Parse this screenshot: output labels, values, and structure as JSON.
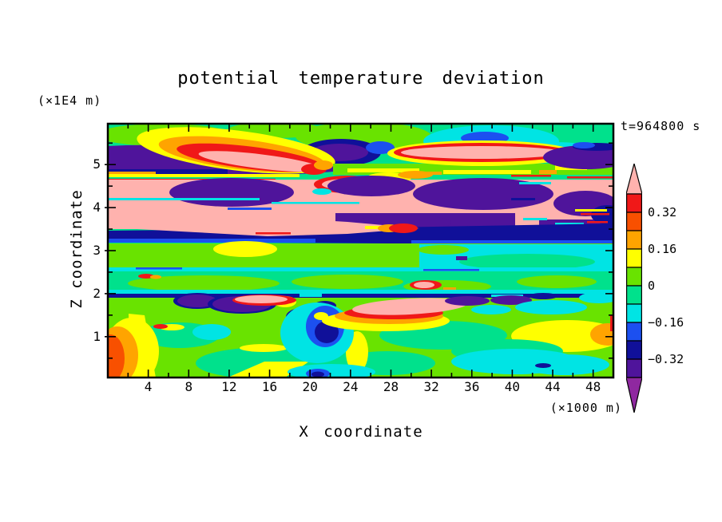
{
  "chart_data": {
    "type": "filled_contour",
    "title": "potential temperature deviation",
    "time_label": "t=964800 s",
    "x_axis": {
      "label": "X coordinate",
      "units": "(×1000 m)",
      "range": [
        0,
        50
      ],
      "minor_tick_step": 2,
      "major_tick_step": 4,
      "tick_labels": [
        4,
        8,
        12,
        16,
        20,
        24,
        28,
        32,
        36,
        40,
        44,
        48
      ]
    },
    "z_axis": {
      "label": "Z coordinate",
      "units": "(×1E4 m)",
      "range": [
        0.05,
        5.95
      ],
      "minor_tick_step": 0.5,
      "major_tick_step": 1,
      "tick_labels": [
        1,
        2,
        3,
        4,
        5
      ]
    },
    "contour_interval": 0.08,
    "contour_levels": [
      -0.4,
      -0.32,
      -0.24,
      -0.16,
      -0.08,
      0,
      0.08,
      0.16,
      0.24,
      0.32,
      0.4
    ],
    "palette": {
      "pink": "#FFB2AE",
      "red": "#F01818",
      "vermillion": "#F85000",
      "orange": "#FFA400",
      "yellow": "#FFFF00",
      "chartreuse": "#69E300",
      "spring_green": "#00E18C",
      "cyan": "#00E4E4",
      "blue": "#1C50F0",
      "navy": "#101099",
      "indigo": "#4F149B",
      "purple": "#8F28A0"
    },
    "colorbar": {
      "segment_keys_top_to_bottom": [
        "red",
        "vermillion",
        "orange",
        "yellow",
        "chartreuse",
        "spring_green",
        "cyan",
        "blue",
        "navy",
        "indigo"
      ],
      "arrow_top_key": "pink",
      "arrow_bottom_key": "purple",
      "labels": [
        {
          "text": "0.32",
          "boundary_index": 1
        },
        {
          "text": "0.16",
          "boundary_index": 3
        },
        {
          "text": "0",
          "boundary_index": 5
        },
        {
          "text": "−0.16",
          "boundary_index": 7
        },
        {
          "text": "−0.32",
          "boundary_index": 9
        }
      ]
    },
    "features": [
      "background field near 0 (spring green) with yellow-green mottling",
      "warm plume (yellow/orange/red/pink > 0.32) upper-left at x≈4-20, z≈5.4",
      "pink lens (>0.40) with red/yellow rim at x≈27-45, z≈5.2",
      "indigo band (<-0.32) with navy patches across z≈5.0-5.3",
      "broad pink band (>0.40) with large indigo blobs between z≈3.6-4.8",
      "full-width navy band (-0.32..-0.24) at z≈3.4-3.6 with pink wedge tapering to x≈30",
      "yellow-green band at z≈2.8-3.3 with yellow patch x≈8-14; cyan on right half",
      "thin cyan line at z≈2.5 and thin navy line at z≈2.0 with indigo blobs x≈7-16",
      "pink lenses with red rims at z≈2.0 (x≈13-18 and x≈24-35)",
      "navy finger ringed by blue/cyan descending at x≈20-23, z≈1.3-2.0",
      "lower field: cyan pools (bottom right x≈33-46), yellow arcs, orange-red hotspot at bottom-left corner, small blue spot near bottom at x≈21"
    ]
  }
}
